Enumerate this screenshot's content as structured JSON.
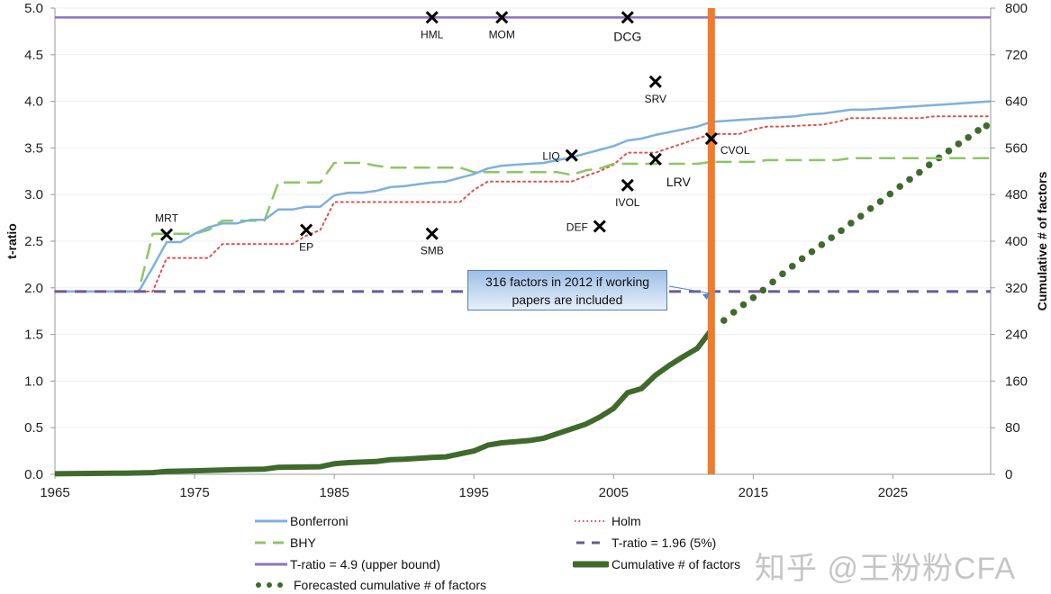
{
  "chart_data": {
    "type": "line",
    "xlabel": "",
    "ylabel": "t-ratio",
    "y2label": "Cumulative # of factors",
    "xlim": [
      1965,
      2032
    ],
    "ylim": [
      0,
      5.0
    ],
    "y2lim": [
      0,
      800
    ],
    "x_ticks": [
      1965,
      1975,
      1985,
      1995,
      2005,
      2015,
      2025
    ],
    "y_ticks": [
      "0.0",
      "0.5",
      "1.0",
      "1.5",
      "2.0",
      "2.5",
      "3.0",
      "3.5",
      "4.0",
      "4.5",
      "5.0"
    ],
    "y2_ticks": [
      "0",
      "80",
      "160",
      "240",
      "320",
      "400",
      "480",
      "560",
      "640",
      "720",
      "800"
    ],
    "grid": "horizontal",
    "legend_position": "bottom",
    "colors": {
      "bonferroni": "#7fb0dc",
      "holm": "#e0504a",
      "bhy": "#8cc665",
      "t196": "#6a5a96",
      "t49": "#8b73c0",
      "cumulative": "#3f6a2c",
      "forecast": "#3f6a2c",
      "vline": "#f07b2c"
    },
    "series": [
      {
        "name": "Bonferroni",
        "axis": "left",
        "style": "solid",
        "x": [
          1965,
          1971,
          1972,
          1973,
          1974,
          1975,
          1976,
          1977,
          1978,
          1979,
          1980,
          1981,
          1982,
          1983,
          1984,
          1985,
          1986,
          1987,
          1988,
          1989,
          1990,
          1991,
          1992,
          1993,
          1994,
          1995,
          1996,
          1997,
          1998,
          1999,
          2000,
          2001,
          2002,
          2003,
          2004,
          2005,
          2006,
          2007,
          2008,
          2009,
          2010,
          2011,
          2012,
          2013,
          2014,
          2015,
          2016,
          2017,
          2018,
          2019,
          2020,
          2021,
          2022,
          2023,
          2024,
          2025,
          2026,
          2027,
          2028,
          2029,
          2030,
          2031,
          2032
        ],
        "values": [
          1.96,
          1.96,
          2.22,
          2.49,
          2.49,
          2.58,
          2.65,
          2.69,
          2.69,
          2.73,
          2.73,
          2.84,
          2.84,
          2.87,
          2.87,
          2.99,
          3.02,
          3.02,
          3.04,
          3.08,
          3.09,
          3.11,
          3.13,
          3.14,
          3.18,
          3.22,
          3.28,
          3.31,
          3.32,
          3.33,
          3.34,
          3.37,
          3.4,
          3.44,
          3.48,
          3.52,
          3.58,
          3.6,
          3.64,
          3.67,
          3.7,
          3.73,
          3.78,
          3.79,
          3.8,
          3.81,
          3.82,
          3.83,
          3.84,
          3.86,
          3.87,
          3.89,
          3.91,
          3.91,
          3.92,
          3.93,
          3.94,
          3.95,
          3.96,
          3.97,
          3.98,
          3.99,
          4.0
        ]
      },
      {
        "name": "Holm",
        "axis": "left",
        "style": "dotted",
        "x": [
          1965,
          1972,
          1973,
          1976,
          1977,
          1982,
          1983,
          1984,
          1985,
          1994,
          1995,
          1996,
          2002,
          2003,
          2004,
          2005,
          2006,
          2008,
          2009,
          2010,
          2011,
          2012,
          2014,
          2015,
          2016,
          2017,
          2020,
          2021,
          2022,
          2027,
          2028,
          2032
        ],
        "values": [
          1.96,
          1.96,
          2.32,
          2.32,
          2.47,
          2.47,
          2.56,
          2.62,
          2.92,
          2.92,
          3.05,
          3.14,
          3.14,
          3.2,
          3.25,
          3.32,
          3.45,
          3.45,
          3.5,
          3.55,
          3.6,
          3.65,
          3.65,
          3.7,
          3.73,
          3.73,
          3.75,
          3.78,
          3.82,
          3.82,
          3.84,
          3.84
        ]
      },
      {
        "name": "BHY",
        "axis": "left",
        "style": "dashed",
        "x": [
          1965,
          1971,
          1972,
          1975,
          1976,
          1977,
          1980,
          1981,
          1984,
          1985,
          1987,
          1988,
          1989,
          1994,
          1995,
          2001,
          2002,
          2003,
          2004,
          2005,
          2011,
          2012,
          2015,
          2016,
          2021,
          2022,
          2032
        ],
        "values": [
          1.96,
          1.96,
          2.58,
          2.58,
          2.62,
          2.72,
          2.72,
          3.13,
          3.13,
          3.34,
          3.34,
          3.31,
          3.29,
          3.29,
          3.24,
          3.24,
          3.21,
          3.26,
          3.28,
          3.33,
          3.33,
          3.35,
          3.35,
          3.37,
          3.37,
          3.39,
          3.39
        ]
      },
      {
        "name": "T-ratio = 1.96 (5%)",
        "axis": "left",
        "style": "dashed-bold",
        "x": [
          1965,
          2032
        ],
        "values": [
          1.96,
          1.96
        ]
      },
      {
        "name": "T-ratio = 4.9 (upper bound)",
        "axis": "left",
        "style": "solid",
        "x": [
          1965,
          2032
        ],
        "values": [
          4.9,
          4.9
        ]
      },
      {
        "name": "Cumulative # of factors",
        "axis": "right",
        "style": "thick",
        "x": [
          1965,
          1970,
          1972,
          1973,
          1975,
          1978,
          1980,
          1981,
          1984,
          1985,
          1986,
          1988,
          1989,
          1990,
          1992,
          1993,
          1994,
          1995,
          1996,
          1997,
          1998,
          1999,
          2000,
          2001,
          2002,
          2003,
          2004,
          2005,
          2006,
          2007,
          2008,
          2009,
          2010,
          2011,
          2012
        ],
        "values": [
          1,
          2,
          3,
          5,
          6,
          8,
          9,
          12,
          13,
          18,
          20,
          22,
          25,
          26,
          29,
          30,
          35,
          40,
          50,
          54,
          56,
          58,
          62,
          70,
          78,
          86,
          98,
          113,
          140,
          147,
          170,
          187,
          202,
          216,
          248
        ]
      },
      {
        "name": "Forecasted cumulative # of factors",
        "axis": "right",
        "style": "dots",
        "x": [
          2012.9,
          2013.6,
          2014.3,
          2015.0,
          2015.7,
          2016.4,
          2017.1,
          2017.8,
          2018.5,
          2019.2,
          2019.9,
          2020.6,
          2021.3,
          2022.0,
          2022.7,
          2023.4,
          2024.1,
          2024.8,
          2025.5,
          2026.2,
          2026.9,
          2027.6,
          2028.3,
          2029.0,
          2029.7,
          2030.4,
          2031.1,
          2031.7
        ],
        "values": [
          264,
          278,
          291,
          303,
          316,
          330,
          344,
          357,
          370,
          382,
          394,
          406,
          418,
          431,
          443,
          456,
          468,
          481,
          494,
          506,
          518,
          531,
          543,
          555,
          567,
          578,
          590,
          598
        ]
      }
    ],
    "vertical_line": {
      "x": 2012
    },
    "factor_markers": [
      {
        "label": "HML",
        "x": 1992,
        "y": 4.9,
        "pos": "below"
      },
      {
        "label": "MOM",
        "x": 1997,
        "y": 4.9,
        "pos": "below"
      },
      {
        "label": "DCG",
        "x": 2006,
        "y": 4.9,
        "pos": "below-big"
      },
      {
        "label": "SRV",
        "x": 2008,
        "y": 4.21,
        "pos": "below"
      },
      {
        "label": "MRT",
        "x": 1973,
        "y": 2.57,
        "pos": "above"
      },
      {
        "label": "EP",
        "x": 1983,
        "y": 2.62,
        "pos": "below"
      },
      {
        "label": "SMB",
        "x": 1992,
        "y": 2.58,
        "pos": "below"
      },
      {
        "label": "LIQ",
        "x": 2002,
        "y": 3.42,
        "pos": "left"
      },
      {
        "label": "LRV",
        "x": 2008,
        "y": 3.38,
        "pos": "right-big"
      },
      {
        "label": "IVOL",
        "x": 2006,
        "y": 3.1,
        "pos": "below"
      },
      {
        "label": "DEF",
        "x": 2004,
        "y": 2.66,
        "pos": "left"
      },
      {
        "label": "CVOL",
        "x": 2012,
        "y": 3.6,
        "pos": "right"
      }
    ],
    "annotation": {
      "text_line1": "316  factors in 2012 if  working",
      "text_line2": "papers are included",
      "points_to": {
        "x": 2012,
        "y": 1.96
      }
    }
  },
  "legend": [
    {
      "label": "Bonferroni",
      "key": "bonferroni",
      "style": "solid"
    },
    {
      "label": "Holm",
      "key": "holm",
      "style": "dotted"
    },
    {
      "label": "BHY",
      "key": "bhy",
      "style": "dashed"
    },
    {
      "label": "T-ratio = 1.96 (5%)",
      "key": "t196",
      "style": "dashed-bold"
    },
    {
      "label": "T-ratio = 4.9 (upper bound)",
      "key": "t49",
      "style": "solid"
    },
    {
      "label": "Cumulative # of factors",
      "key": "cumulative",
      "style": "thick"
    },
    {
      "label": "Forecasted cumulative # of factors",
      "key": "forecast",
      "style": "dots"
    }
  ],
  "watermark": "知乎 @王粉粉CFA"
}
